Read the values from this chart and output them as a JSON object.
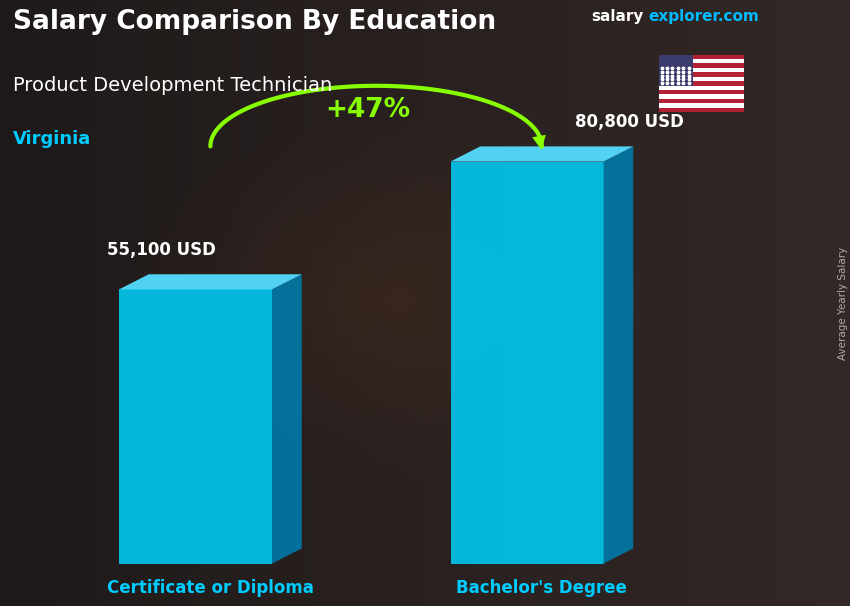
{
  "title": "Salary Comparison By Education",
  "subtitle": "Product Development Technician",
  "location": "Virginia",
  "watermark_salary": "salary",
  "watermark_explorer": "explorer.com",
  "ylabel": "Average Yearly Salary",
  "categories": [
    "Certificate or Diploma",
    "Bachelor's Degree"
  ],
  "values": [
    55100,
    80800
  ],
  "value_labels": [
    "55,100 USD",
    "80,800 USD"
  ],
  "pct_change": "+47%",
  "bar_face_color": "#00C8F0",
  "bar_side_color": "#007AAA",
  "bar_top_color": "#55DDFF",
  "title_color": "#FFFFFF",
  "subtitle_color": "#FFFFFF",
  "location_color": "#00CCFF",
  "label_color": "#FFFFFF",
  "category_color": "#00CCFF",
  "pct_color": "#88FF00",
  "watermark_color_salary": "#FFFFFF",
  "watermark_color_explorer": "#00BBFF",
  "bg_dark": "#1A1A1A",
  "bg_mid": "#3A3028",
  "figsize": [
    8.5,
    6.06
  ],
  "dpi": 100
}
